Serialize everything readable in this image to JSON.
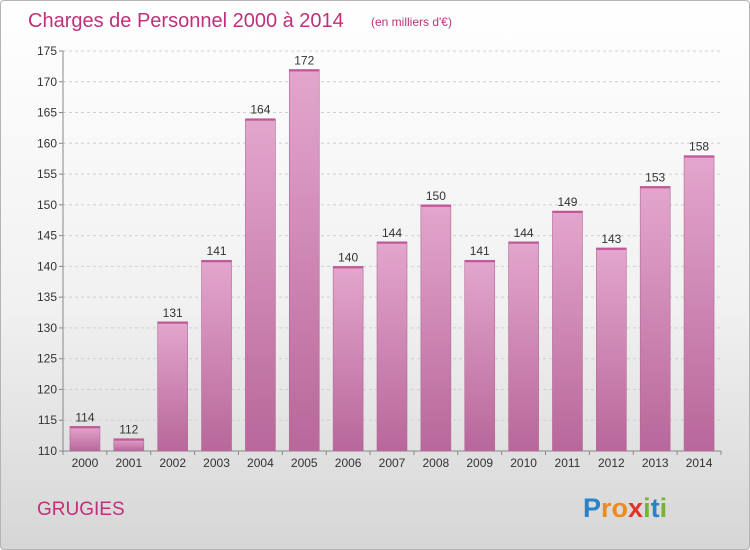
{
  "chart_data": {
    "type": "bar",
    "title": "Charges de Personnel 2000 à 2014",
    "subtitle": "(en milliers d'€)",
    "categories": [
      "2000",
      "2001",
      "2002",
      "2003",
      "2004",
      "2005",
      "2006",
      "2007",
      "2008",
      "2009",
      "2010",
      "2011",
      "2012",
      "2013",
      "2014"
    ],
    "values": [
      114,
      112,
      131,
      141,
      164,
      172,
      140,
      144,
      150,
      141,
      144,
      149,
      143,
      153,
      158
    ],
    "ylim": [
      110,
      175
    ],
    "yticks": [
      110,
      115,
      120,
      125,
      130,
      135,
      140,
      145,
      150,
      155,
      160,
      165,
      170,
      175
    ],
    "grid": true,
    "bar_color": "#d98bbb",
    "title_color": "#c0307a"
  },
  "footer": {
    "commune": "GRUGIES",
    "logo_text": "Proxiti",
    "logo_letters": [
      {
        "ch": "P",
        "color": "#2a82c8"
      },
      {
        "ch": "r",
        "color": "#f08a1c"
      },
      {
        "ch": "o",
        "color": "#f08a1c"
      },
      {
        "ch": "x",
        "color": "#e2332a"
      },
      {
        "ch": "i",
        "color": "#78b431"
      },
      {
        "ch": "t",
        "color": "#2a82c8"
      },
      {
        "ch": "i",
        "color": "#78b431"
      }
    ]
  }
}
